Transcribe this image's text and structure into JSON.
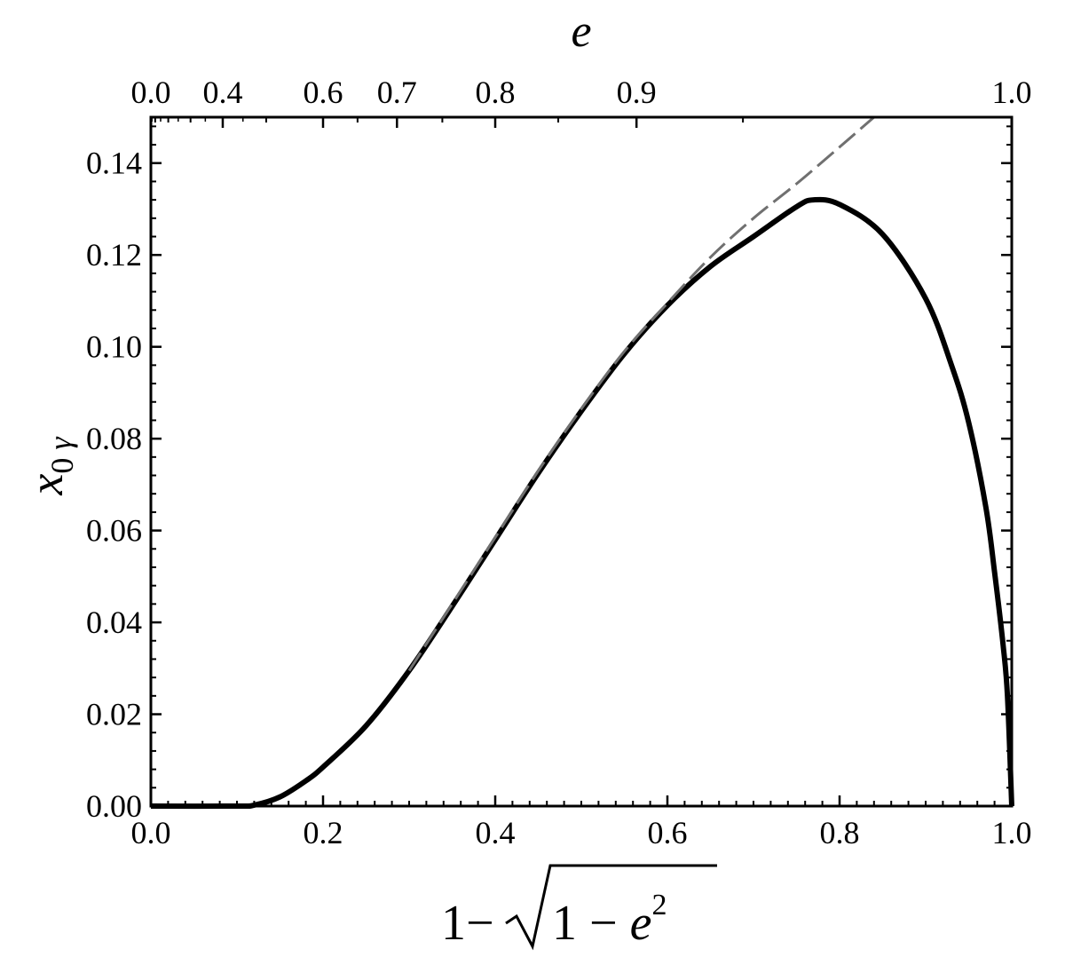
{
  "chart_data": {
    "type": "line",
    "xlim": [
      0.0,
      1.0
    ],
    "ylim": [
      0.0,
      0.15
    ],
    "x_ticks": [
      {
        "value": 0.0,
        "label": "0.0"
      },
      {
        "value": 0.2,
        "label": "0.2"
      },
      {
        "value": 0.4,
        "label": "0.4"
      },
      {
        "value": 0.6,
        "label": "0.6"
      },
      {
        "value": 0.8,
        "label": "0.8"
      },
      {
        "value": 1.0,
        "label": "1.0"
      }
    ],
    "y_ticks": [
      {
        "value": 0.0,
        "label": "0.00"
      },
      {
        "value": 0.02,
        "label": "0.02"
      },
      {
        "value": 0.04,
        "label": "0.04"
      },
      {
        "value": 0.06,
        "label": "0.06"
      },
      {
        "value": 0.08,
        "label": "0.08"
      },
      {
        "value": 0.1,
        "label": "0.10"
      },
      {
        "value": 0.12,
        "label": "0.12"
      },
      {
        "value": 0.14,
        "label": "0.14"
      }
    ],
    "top_axis": {
      "label": "e",
      "ticks": [
        {
          "value": 0.0,
          "label": "0.0"
        },
        {
          "value": 0.4,
          "label": "0.4"
        },
        {
          "value": 0.6,
          "label": "0.6"
        },
        {
          "value": 0.7,
          "label": "0.7"
        },
        {
          "value": 0.8,
          "label": "0.8"
        },
        {
          "value": 0.9,
          "label": "0.9"
        },
        {
          "value": 1.0,
          "label": "1.0"
        }
      ],
      "minor_ticks": [
        0.1,
        0.2,
        0.3,
        0.5,
        0.65,
        0.75,
        0.85,
        0.95
      ]
    },
    "xlabel": "1−√1 − e²",
    "ylabel": "x₀ᵧ",
    "series": [
      {
        "style": "solid",
        "color": "#000000",
        "x": [
          0.0,
          0.1,
          0.12,
          0.15,
          0.18,
          0.2,
          0.25,
          0.3,
          0.35,
          0.4,
          0.45,
          0.5,
          0.55,
          0.6,
          0.65,
          0.7,
          0.75,
          0.77,
          0.8,
          0.85,
          0.9,
          0.93,
          0.95,
          0.97,
          0.98,
          0.99,
          0.995,
          1.0
        ],
        "y": [
          0.0,
          0.0,
          0.0002,
          0.002,
          0.0055,
          0.0085,
          0.0175,
          0.0295,
          0.0435,
          0.058,
          0.0725,
          0.086,
          0.0985,
          0.109,
          0.1175,
          0.124,
          0.1305,
          0.132,
          0.131,
          0.1245,
          0.1105,
          0.096,
          0.0835,
          0.065,
          0.051,
          0.035,
          0.024,
          0.0
        ]
      },
      {
        "style": "dashed",
        "color": "#707070",
        "x": [
          0.3,
          0.35,
          0.4,
          0.45,
          0.5,
          0.55,
          0.6,
          0.65,
          0.7,
          0.75,
          0.8,
          0.84
        ],
        "y": [
          0.0295,
          0.044,
          0.0585,
          0.073,
          0.0865,
          0.099,
          0.1095,
          0.1195,
          0.128,
          0.1355,
          0.1435,
          0.15
        ]
      }
    ]
  }
}
